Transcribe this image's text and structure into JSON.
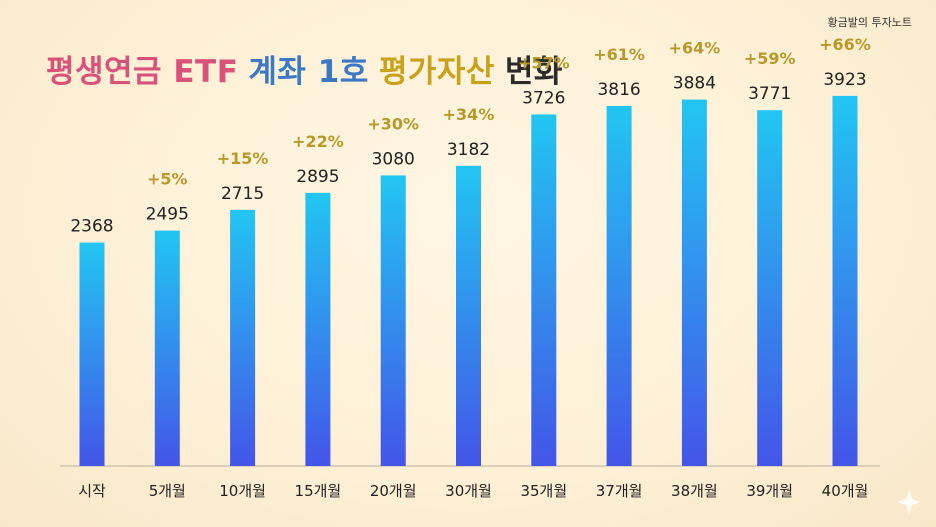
{
  "brand": "황금발의 투자노트",
  "title": {
    "parts": [
      {
        "text": "평생연금 ETF",
        "color": "#d9527a"
      },
      {
        "text": "계좌 1호",
        "color": "#3d78c4"
      },
      {
        "text": "평가자산",
        "color": "#c9a21a"
      },
      {
        "text": "변화",
        "color": "#2b2b2b"
      }
    ]
  },
  "colors": {
    "bar_top": "#22c6f2",
    "bar_bottom": "#4455e8",
    "value_label": "#222222",
    "pct_label": "#b89a2a",
    "axis": "#b8b0a0"
  },
  "chart_data": {
    "type": "bar",
    "title": "평생연금 ETF 계좌 1호 평가자산 변화",
    "categories": [
      "시작",
      "5개월",
      "10개월",
      "15개월",
      "20개월",
      "30개월",
      "35개월",
      "37개월",
      "38개월",
      "39개월",
      "40개월"
    ],
    "values": [
      2368,
      2495,
      2715,
      2895,
      3080,
      3182,
      3726,
      3816,
      3884,
      3771,
      3923
    ],
    "change_labels": [
      "",
      "+5%",
      "+15%",
      "+22%",
      "+30%",
      "+34%",
      "+57%",
      "+61%",
      "+64%",
      "+59%",
      "+66%"
    ],
    "ylim": [
      0,
      4600
    ],
    "grid": false,
    "legend": "none"
  }
}
